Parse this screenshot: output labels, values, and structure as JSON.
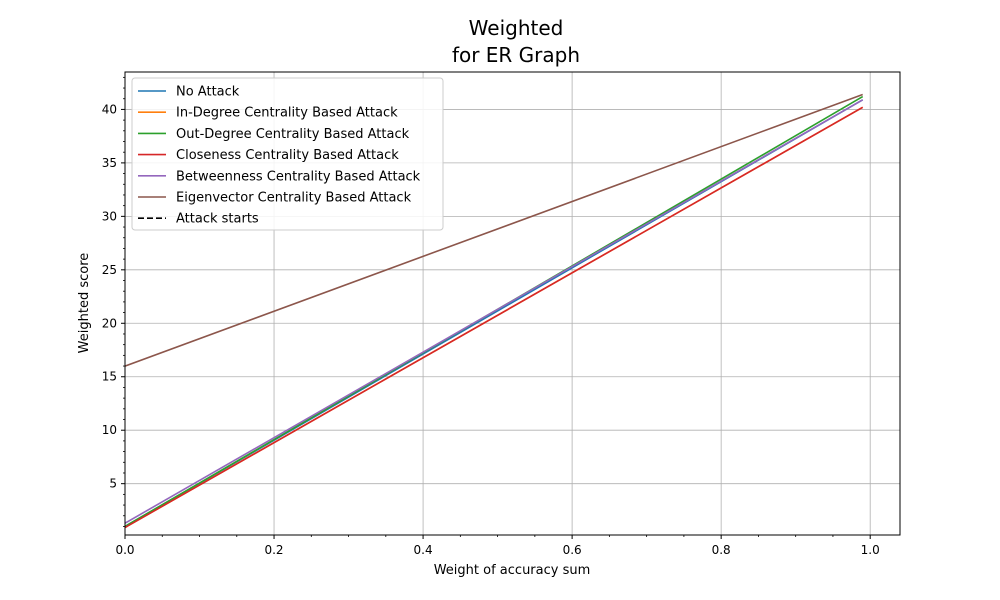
{
  "chart_data": {
    "type": "line",
    "title_lines": [
      "Weighted",
      "for ER Graph"
    ],
    "xlabel": "Weight of accuracy sum",
    "ylabel": "Weighted score",
    "xlim": [
      0,
      1.04
    ],
    "ylim": [
      0.2,
      43.5
    ],
    "xticks": [
      0.0,
      0.2,
      0.4,
      0.6,
      0.8,
      1.0
    ],
    "xtick_labels": [
      "0.0",
      "0.2",
      "0.4",
      "0.6",
      "0.8",
      "1.0"
    ],
    "yticks": [
      5,
      10,
      15,
      20,
      25,
      30,
      35,
      40
    ],
    "ytick_labels": [
      "5",
      "10",
      "15",
      "20",
      "25",
      "30",
      "35",
      "40"
    ],
    "grid": true,
    "legend_position": "top-left",
    "series": [
      {
        "name": "No Attack",
        "color": "#1f77b4",
        "dashed": false,
        "x": [
          0.0,
          0.99
        ],
        "y": [
          1.0,
          40.9
        ]
      },
      {
        "name": "In-Degree Centrality Based Attack",
        "color": "#ff7f0e",
        "dashed": false,
        "x": [
          0.0,
          0.99
        ],
        "y": [
          0.9,
          40.2
        ]
      },
      {
        "name": "Out-Degree Centrality Based Attack",
        "color": "#2ca02c",
        "dashed": false,
        "x": [
          0.0,
          0.99
        ],
        "y": [
          1.0,
          41.2
        ]
      },
      {
        "name": "Closeness Centrality Based Attack",
        "color": "#d62728",
        "dashed": false,
        "x": [
          0.0,
          0.99
        ],
        "y": [
          0.9,
          40.2
        ]
      },
      {
        "name": "Betweenness Centrality Based Attack",
        "color": "#9467bd",
        "dashed": false,
        "x": [
          0.0,
          0.99
        ],
        "y": [
          1.3,
          40.9
        ]
      },
      {
        "name": "Eigenvector Centrality Based Attack",
        "color": "#8c564b",
        "dashed": false,
        "x": [
          0.0,
          0.99
        ],
        "y": [
          16.0,
          41.4
        ]
      },
      {
        "name": "Attack starts",
        "color": "#000000",
        "dashed": true,
        "x": [],
        "y": []
      }
    ]
  }
}
